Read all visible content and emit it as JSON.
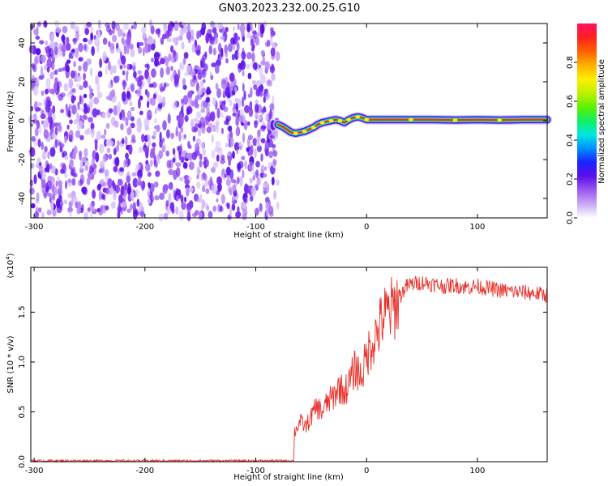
{
  "title": "GN03.2023.232.00.25.G10",
  "chart_data": [
    {
      "type": "heatmap",
      "xlabel": "Height of straight line (km)",
      "ylabel": "Frequency (Hz)",
      "xlim": [
        -303,
        163
      ],
      "ylim": [
        -50,
        50
      ],
      "xticks": [
        -300,
        -200,
        -100,
        0,
        100
      ],
      "xtick_labels": [
        "-300",
        "-200",
        "-100",
        "0",
        "100"
      ],
      "yticks": [
        -40,
        -20,
        0,
        20,
        40
      ],
      "ytick_labels": [
        "-40",
        "-20",
        "0",
        "20",
        "40"
      ],
      "noise_region_x": [
        -303,
        -80
      ],
      "signal_track": {
        "x": [
          -80,
          -76,
          -72,
          -68,
          -64,
          -60,
          -56,
          -52,
          -48,
          -44,
          -40,
          -36,
          -32,
          -28,
          -24,
          -20,
          -16,
          -12,
          -8,
          -4,
          0,
          20,
          40,
          60,
          80,
          100,
          120,
          140,
          163
        ],
        "y": [
          -2,
          -3,
          -4.5,
          -6,
          -6.5,
          -6,
          -5.5,
          -4.5,
          -3.5,
          -2,
          -1,
          -0.5,
          0,
          0.5,
          0,
          -1,
          0.5,
          1.5,
          2,
          1.5,
          0.5,
          0.5,
          0.5,
          0.5,
          0.3,
          0.5,
          0.3,
          0.5,
          0.5
        ]
      },
      "grid": false
    },
    {
      "type": "colorbar",
      "label": "Normalized spectral amplitude",
      "range": [
        0,
        1
      ],
      "ticks": [
        0.0,
        0.2,
        0.4,
        0.6,
        0.8
      ],
      "tick_labels": [
        "0.0",
        "0.2",
        "0.4",
        "0.6",
        "0.8"
      ],
      "colors": [
        "#ffffff",
        "#c9a8f5",
        "#9b59f0",
        "#5a10e6",
        "#1a22ff",
        "#0090ff",
        "#00e8e0",
        "#10f060",
        "#60f000",
        "#c0f000",
        "#ffee00",
        "#ffb000",
        "#ff6000",
        "#ff2020",
        "#ff1060"
      ]
    },
    {
      "type": "line",
      "xlabel": "Height of straight line (km)",
      "ylabel": "SNR (10 * v/v)",
      "y_multiplier": "(x10",
      "y_multiplier_exp": "4",
      "xlim": [
        -303,
        163
      ],
      "ylim": [
        0,
        1.95
      ],
      "xticks": [
        -300,
        -200,
        -100,
        0,
        100
      ],
      "xtick_labels": [
        "-300",
        "-200",
        "-100",
        "0",
        "100"
      ],
      "yticks": [
        0.0,
        0.5,
        1.0,
        1.5
      ],
      "ytick_labels": [
        "0.0",
        "0.5",
        "1.0",
        "1.5"
      ],
      "line_color": "#e8322c",
      "series": [
        {
          "x": [
            -303,
            -200,
            -100,
            -66,
            -65,
            -60,
            -55,
            -50,
            -45,
            -40,
            -35,
            -30,
            -25,
            -20,
            -15,
            -10,
            -5,
            0,
            5,
            10,
            15,
            20,
            25,
            30,
            35,
            40,
            50,
            60,
            70,
            80,
            90,
            100,
            110,
            120,
            130,
            140,
            150,
            163
          ],
          "values": [
            0.01,
            0.01,
            0.01,
            0.01,
            0.3,
            0.4,
            0.35,
            0.45,
            0.55,
            0.5,
            0.6,
            0.65,
            0.75,
            0.7,
            0.8,
            0.95,
            0.85,
            1.05,
            1.2,
            1.3,
            1.45,
            1.5,
            1.55,
            1.65,
            1.75,
            1.78,
            1.8,
            1.78,
            1.76,
            1.77,
            1.75,
            1.76,
            1.74,
            1.72,
            1.71,
            1.7,
            1.69,
            1.67
          ]
        }
      ],
      "grid": false
    }
  ]
}
